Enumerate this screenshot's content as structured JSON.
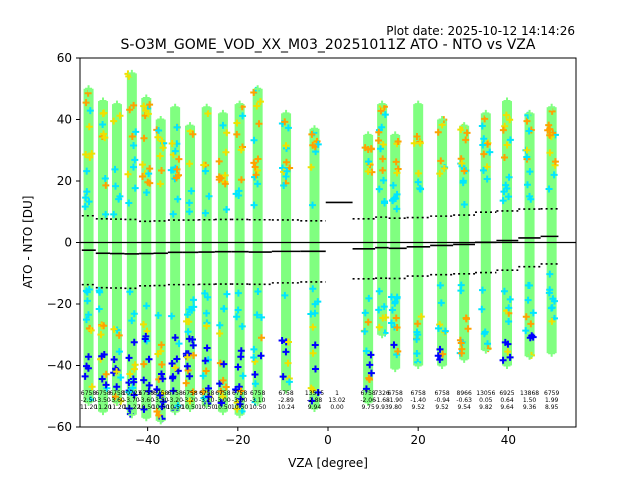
{
  "plot_date": "Plot date: 2025-10-12 14:14:26",
  "chart_data": {
    "type": "scatter",
    "title": "S-O3M_GOME_VOD_XX_M03_20251011Z ATO - NTO vs VZA",
    "xlabel": "VZA [degree]",
    "ylabel": "ATO - NTO [DU]",
    "xlim": [
      -55,
      55
    ],
    "ylim": [
      -60,
      60
    ],
    "xticks": [
      -40,
      -20,
      0,
      20,
      40
    ],
    "yticks": [
      -60,
      -40,
      -20,
      0,
      20,
      40,
      60
    ],
    "xtick_labels": [
      "−40",
      "−20",
      "0",
      "20",
      "40"
    ],
    "ytick_labels": [
      "−60",
      "−40",
      "−20",
      "0",
      "20",
      "40",
      "60"
    ],
    "zero_line": 0,
    "bins": [
      {
        "x": -53.1,
        "mean": -2.5,
        "std": 11.2,
        "count": "6758",
        "mean_label": "-2.50",
        "std_label": "11.20",
        "ymin": -52,
        "ymax": 50
      },
      {
        "x": -49.9,
        "mean": -3.5,
        "std": 11.2,
        "count": "6758",
        "mean_label": "-3.50",
        "std_label": "11.20",
        "ymin": -55,
        "ymax": 46
      },
      {
        "x": -46.8,
        "mean": -3.6,
        "std": 11.2,
        "count": "6758",
        "mean_label": "-3.60",
        "std_label": "11.20",
        "ymin": -52,
        "ymax": 45
      },
      {
        "x": -43.5,
        "mean": -3.7,
        "std": 11.2,
        "count": "10723",
        "mean_label": "-3.70",
        "std_label": "11.22",
        "ymin": -56,
        "ymax": 55
      },
      {
        "x": -40.3,
        "mean": -3.6,
        "std": 10.5,
        "count": "6758",
        "mean_label": "-3.60",
        "std_label": "10.50",
        "ymin": -57,
        "ymax": 47
      },
      {
        "x": -37.1,
        "mean": -3.5,
        "std": 10.5,
        "count": "6758",
        "mean_label": "-3.50",
        "std_label": "10.50",
        "ymin": -58,
        "ymax": 40
      },
      {
        "x": -33.9,
        "mean": -3.2,
        "std": 10.5,
        "count": "6758",
        "mean_label": "-3.20",
        "std_label": "10.50",
        "ymin": -55,
        "ymax": 44
      },
      {
        "x": -30.6,
        "mean": -3.2,
        "std": 10.5,
        "count": "6758",
        "mean_label": "-3.20",
        "std_label": "10.50",
        "ymin": -54,
        "ymax": 38
      },
      {
        "x": -26.9,
        "mean": -3.1,
        "std": 10.5,
        "count": "6758",
        "mean_label": "-3.10",
        "std_label": "10.50",
        "ymin": -53,
        "ymax": 44
      },
      {
        "x": -23.3,
        "mean": -3.0,
        "std": 10.5,
        "count": "6758",
        "mean_label": "-3.00",
        "std_label": "10.50",
        "ymin": -55,
        "ymax": 42
      },
      {
        "x": -19.6,
        "mean": -3.0,
        "std": 10.5,
        "count": "6758",
        "mean_label": "-3.00",
        "std_label": "10.50",
        "ymin": -56,
        "ymax": 45
      },
      {
        "x": -15.6,
        "mean": -3.1,
        "std": 10.5,
        "count": "6758",
        "mean_label": "-3.10",
        "std_label": "10.50",
        "ymin": -52,
        "ymax": 50
      },
      {
        "x": -9.3,
        "mean": -2.89,
        "std": 10.24,
        "count": "6758",
        "mean_label": "-2.89",
        "std_label": "10.24",
        "ymin": -48,
        "ymax": 42
      },
      {
        "x": -3.0,
        "mean": -2.88,
        "std": 9.94,
        "count": "13515",
        "mean_label": "-2.88",
        "std_label": "9.94",
        "ymin": -54,
        "ymax": 37
      },
      {
        "x": 2.0,
        "mean": 13.02,
        "std": 0.0,
        "count": "1",
        "mean_label": "13.02",
        "std_label": "0.00",
        "ymin": 13,
        "ymax": 13
      },
      {
        "x": 8.9,
        "mean": -2.06,
        "std": 9.75,
        "count": "6758",
        "mean_label": "-2.06",
        "std_label": "9.75",
        "ymin": -52,
        "ymax": 35
      },
      {
        "x": 12.0,
        "mean": -1.68,
        "std": 9.93,
        "count": "7326",
        "mean_label": "-1.68",
        "std_label": "9.93",
        "ymin": -30,
        "ymax": 45
      },
      {
        "x": 14.9,
        "mean": -1.9,
        "std": 9.8,
        "count": "6758",
        "mean_label": "-1.90",
        "std_label": "9.80",
        "ymin": -41,
        "ymax": 35
      },
      {
        "x": 20.0,
        "mean": -1.4,
        "std": 9.52,
        "count": "6758",
        "mean_label": "-1.40",
        "std_label": "9.52",
        "ymin": -40,
        "ymax": 45
      },
      {
        "x": 25.3,
        "mean": -0.94,
        "std": 9.52,
        "count": "6758",
        "mean_label": "-0.94",
        "std_label": "9.52",
        "ymin": -40,
        "ymax": 40
      },
      {
        "x": 30.2,
        "mean": -0.63,
        "std": 9.54,
        "count": "8966",
        "mean_label": "-0.63",
        "std_label": "9.54",
        "ymin": -38,
        "ymax": 38
      },
      {
        "x": 35.0,
        "mean": 0.05,
        "std": 9.82,
        "count": "13056",
        "mean_label": "0.05",
        "std_label": "9.82",
        "ymin": -35,
        "ymax": 42
      },
      {
        "x": 39.7,
        "mean": 0.64,
        "std": 9.64,
        "count": "6925",
        "mean_label": "0.64",
        "std_label": "9.64",
        "ymin": -40,
        "ymax": 46
      },
      {
        "x": 44.7,
        "mean": 1.5,
        "std": 9.36,
        "count": "13868",
        "mean_label": "1.50",
        "std_label": "9.36",
        "ymin": -37,
        "ymax": 42
      },
      {
        "x": 49.6,
        "mean": 1.99,
        "std": 8.95,
        "count": "6759",
        "mean_label": "1.99",
        "std_label": "8.95",
        "ymin": -36,
        "ymax": 44
      }
    ]
  },
  "colors": {
    "band_main": "#80ff80",
    "band_cyan": "#00e5ff",
    "band_blue": "#0000ff",
    "band_yellow": "#f0e000",
    "band_orange": "#ffa000",
    "lines": "#000000"
  }
}
